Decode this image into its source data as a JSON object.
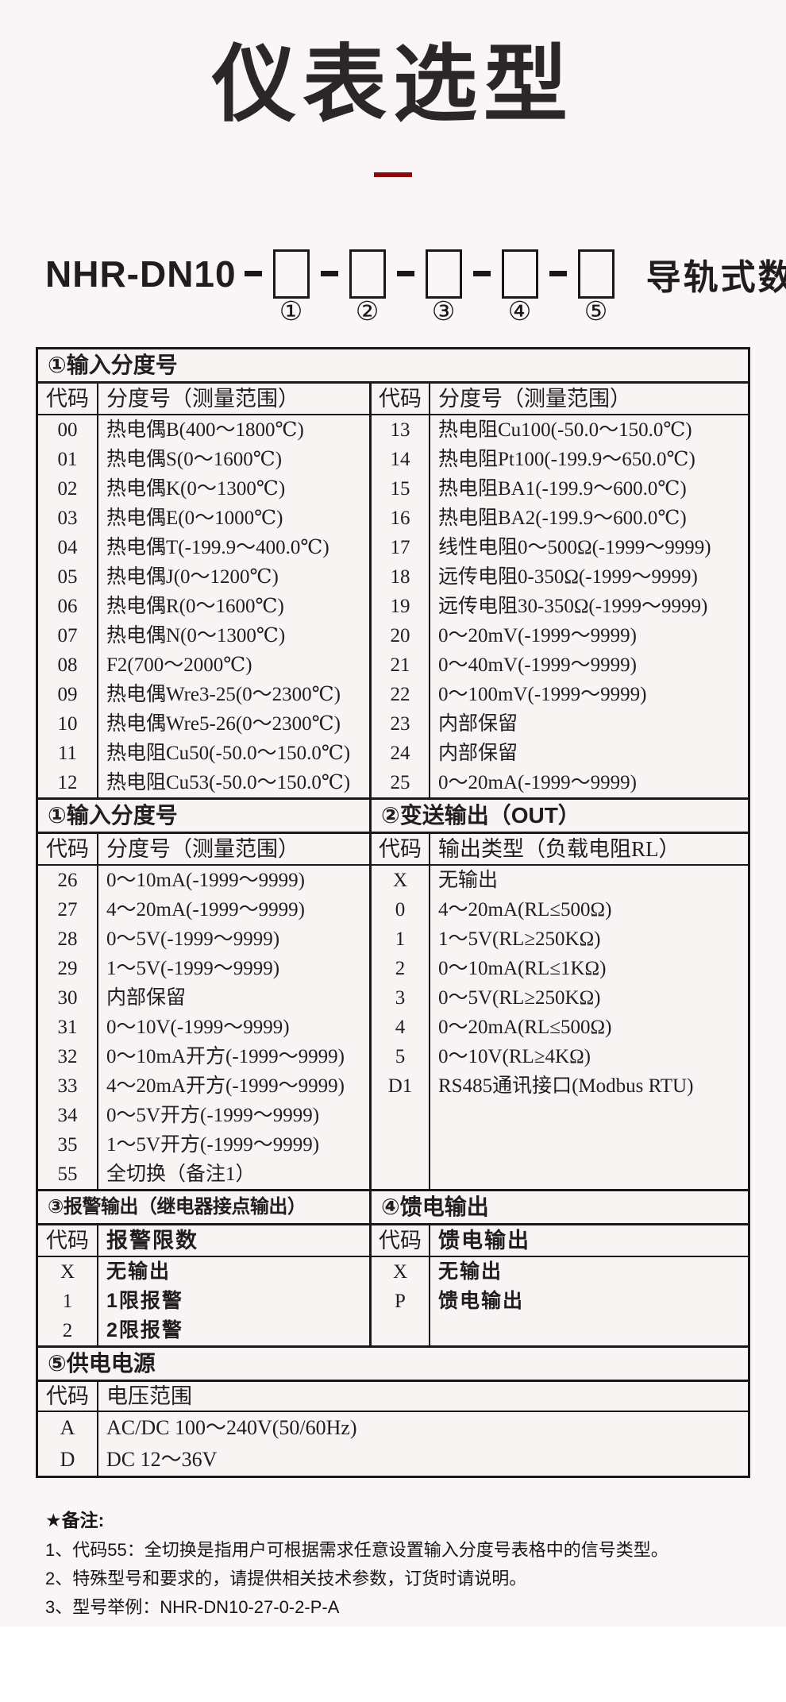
{
  "header": {
    "title": "仪表选型"
  },
  "accent_color": "#8c0a0a",
  "model": {
    "prefix": "NHR-DN10",
    "suffix": "导轨式数显表",
    "slots": [
      "①",
      "②",
      "③",
      "④",
      "⑤"
    ]
  },
  "tables": [
    {
      "header_full": "①输入分度号",
      "left": {
        "cols": [
          "代码",
          "分度号（测量范围）"
        ],
        "rows": [
          [
            "00",
            "热电偶B(400～1800℃)"
          ],
          [
            "01",
            "热电偶S(0～1600℃)"
          ],
          [
            "02",
            "热电偶K(0～1300℃)"
          ],
          [
            "03",
            "热电偶E(0～1000℃)"
          ],
          [
            "04",
            "热电偶T(-199.9～400.0℃)"
          ],
          [
            "05",
            "热电偶J(0～1200℃)"
          ],
          [
            "06",
            "热电偶R(0～1600℃)"
          ],
          [
            "07",
            "热电偶N(0～1300℃)"
          ],
          [
            "08",
            "F2(700～2000℃)"
          ],
          [
            "09",
            "热电偶Wre3-25(0～2300℃)"
          ],
          [
            "10",
            "热电偶Wre5-26(0～2300℃)"
          ],
          [
            "11",
            "热电阻Cu50(-50.0～150.0℃)"
          ],
          [
            "12",
            "热电阻Cu53(-50.0～150.0℃)"
          ]
        ]
      },
      "right": {
        "cols": [
          "代码",
          "分度号（测量范围）"
        ],
        "rows": [
          [
            "13",
            "热电阻Cu100(-50.0～150.0℃)"
          ],
          [
            "14",
            "热电阻Pt100(-199.9～650.0℃)"
          ],
          [
            "15",
            "热电阻BA1(-199.9～600.0℃)"
          ],
          [
            "16",
            "热电阻BA2(-199.9～600.0℃)"
          ],
          [
            "17",
            "线性电阻0～500Ω(-1999～9999)"
          ],
          [
            "18",
            "远传电阻0-350Ω(-1999～9999)"
          ],
          [
            "19",
            "远传电阻30-350Ω(-1999～9999)"
          ],
          [
            "20",
            "0～20mV(-1999～9999)"
          ],
          [
            "21",
            "0～40mV(-1999～9999)"
          ],
          [
            "22",
            "0～100mV(-1999～9999)"
          ],
          [
            "23",
            "内部保留"
          ],
          [
            "24",
            "内部保留"
          ],
          [
            "25",
            "0～20mA(-1999～9999)"
          ]
        ]
      }
    },
    {
      "header_left": "①输入分度号",
      "header_right": "②变送输出（OUT）",
      "left": {
        "cols": [
          "代码",
          "分度号（测量范围）"
        ],
        "rows": [
          [
            "26",
            "0～10mA(-1999～9999)"
          ],
          [
            "27",
            "4～20mA(-1999～9999)"
          ],
          [
            "28",
            "0～5V(-1999～9999)"
          ],
          [
            "29",
            "1～5V(-1999～9999)"
          ],
          [
            "30",
            "内部保留"
          ],
          [
            "31",
            "0～10V(-1999～9999)"
          ],
          [
            "32",
            "0～10mA开方(-1999～9999)"
          ],
          [
            "33",
            "4～20mA开方(-1999～9999)"
          ],
          [
            "34",
            "0～5V开方(-1999～9999)"
          ],
          [
            "35",
            "1～5V开方(-1999～9999)"
          ],
          [
            "55",
            "全切换（备注1）"
          ]
        ]
      },
      "right": {
        "cols": [
          "代码",
          "输出类型（负载电阻RL）"
        ],
        "rows": [
          [
            "X",
            "无输出"
          ],
          [
            "0",
            "4～20mA(RL≤500Ω)"
          ],
          [
            "1",
            "1～5V(RL≥250KΩ)"
          ],
          [
            "2",
            "0～10mA(RL≤1KΩ)"
          ],
          [
            "3",
            "0～5V(RL≥250KΩ)"
          ],
          [
            "4",
            "0～20mA(RL≤500Ω)"
          ],
          [
            "5",
            "0～10V(RL≥4KΩ)"
          ],
          [
            "D1",
            "RS485通讯接口(Modbus RTU)"
          ]
        ]
      }
    },
    {
      "header_left": "③报警输出（继电器接点输出）",
      "header_right": "④馈电输出",
      "left": {
        "cols": [
          "代码",
          "报警限数"
        ],
        "rows": [
          [
            "X",
            "无输出"
          ],
          [
            "1",
            "1限报警"
          ],
          [
            "2",
            "2限报警"
          ]
        ]
      },
      "right": {
        "cols": [
          "代码",
          "馈电输出"
        ],
        "rows": [
          [
            "X",
            "无输出"
          ],
          [
            "P",
            "馈电输出"
          ]
        ]
      }
    },
    {
      "header_full": "⑤供电电源",
      "left": {
        "cols": [
          "代码",
          "电压范围"
        ],
        "rows": [
          [
            "A",
            "AC/DC 100～240V(50/60Hz)"
          ],
          [
            "D",
            "DC 12～36V"
          ]
        ]
      }
    }
  ],
  "notes": {
    "title": "★备注:",
    "items": [
      "1、代码55：全切换是指用户可根据需求任意设置输入分度号表格中的信号类型。",
      "2、特殊型号和要求的，请提供相关技术参数，订货时请说明。",
      "3、型号举例：NHR-DN10-27-0-2-P-A"
    ]
  }
}
